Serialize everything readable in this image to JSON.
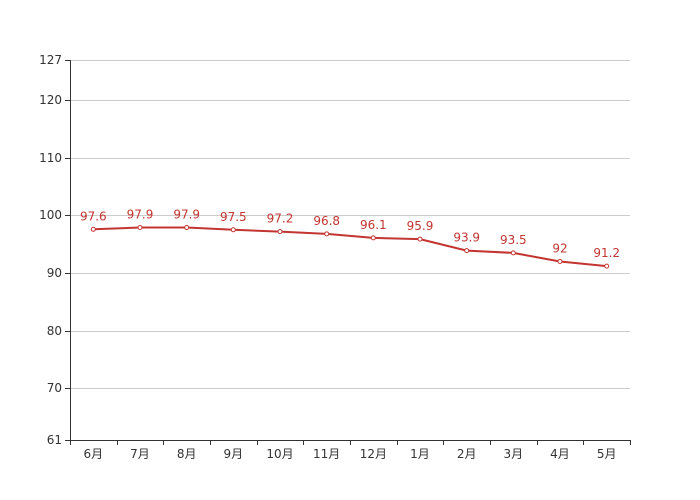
{
  "chart_data": {
    "type": "line",
    "categories": [
      "6月",
      "7月",
      "8月",
      "9月",
      "10月",
      "11月",
      "12月",
      "1月",
      "2月",
      "3月",
      "4月",
      "5月"
    ],
    "series": [
      {
        "values": [
          97.6,
          97.9,
          97.9,
          97.5,
          97.2,
          96.8,
          96.1,
          95.9,
          93.9,
          93.5,
          92,
          91.2
        ],
        "labels": [
          "97.6",
          "97.9",
          "97.9",
          "97.5",
          "97.2",
          "96.8",
          "96.1",
          "95.9",
          "93.9",
          "93.5",
          "92",
          "91.2"
        ]
      }
    ],
    "yticks": [
      61,
      70,
      80,
      90,
      100,
      110,
      120,
      127
    ],
    "ylim": [
      61,
      127
    ],
    "grid": true,
    "line_color": "#c23531",
    "title": "",
    "xlabel": "",
    "ylabel": ""
  }
}
